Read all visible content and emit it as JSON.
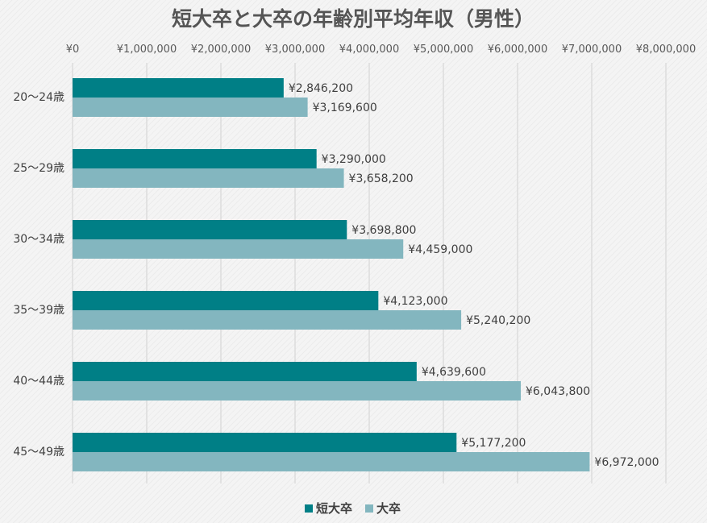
{
  "chart_data": {
    "type": "bar",
    "orientation": "horizontal",
    "title": "短大卒と大卒の年齢別平均年収（男性）",
    "categories": [
      "20〜24歳",
      "25〜29歳",
      "30〜34歳",
      "35〜39歳",
      "40〜44歳",
      "45〜49歳"
    ],
    "series": [
      {
        "name": "短大卒",
        "color": "#007f86",
        "values": [
          2846200,
          3290000,
          3698800,
          4123000,
          4639600,
          5177200
        ],
        "labels": [
          "¥2,846,200",
          "¥3,290,000",
          "¥3,698,800",
          "¥4,123,000",
          "¥4,639,600",
          "¥5,177,200"
        ]
      },
      {
        "name": "大卒",
        "color": "#83b6bf",
        "values": [
          3169600,
          3658200,
          4459000,
          5240200,
          6043800,
          6972000
        ],
        "labels": [
          "¥3,169,600",
          "¥3,658,200",
          "¥4,459,000",
          "¥5,240,200",
          "¥6,043,800",
          "¥6,972,000"
        ]
      }
    ],
    "xlim": [
      0,
      8000000
    ],
    "xticks": [
      0,
      1000000,
      2000000,
      3000000,
      4000000,
      5000000,
      6000000,
      7000000,
      8000000
    ],
    "xtick_labels": [
      "¥0",
      "¥1,000,000",
      "¥2,000,000",
      "¥3,000,000",
      "¥4,000,000",
      "¥5,000,000",
      "¥6,000,000",
      "¥7,000,000",
      "¥8,000,000"
    ],
    "axis_position": "top",
    "grid": true,
    "legend": "bottom",
    "gridline_color": "#d9d9d9"
  }
}
